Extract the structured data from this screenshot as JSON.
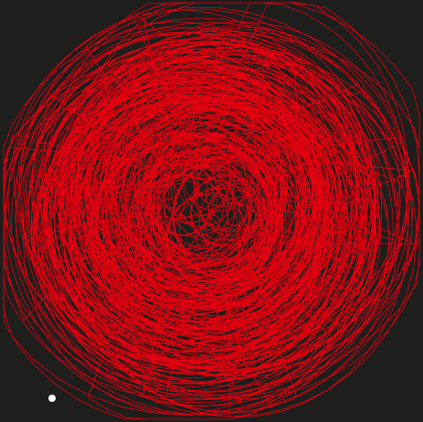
{
  "canvas": {
    "background_color": "#1e1e1c",
    "stroke_color": "#e3000f",
    "marker_color": "#ffffff"
  }
}
